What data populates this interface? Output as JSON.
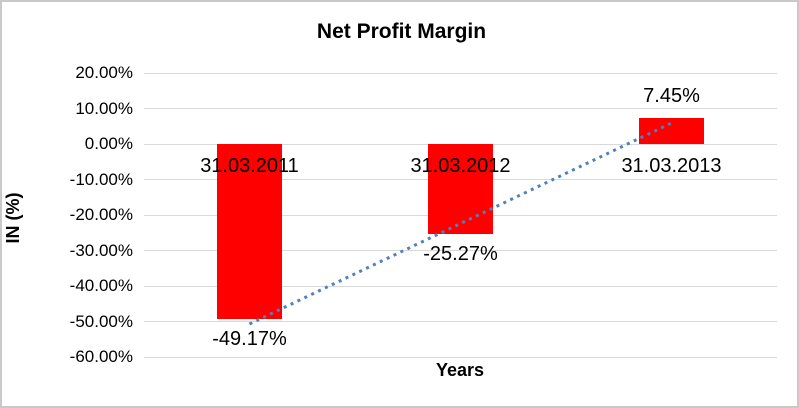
{
  "chart_data": {
    "type": "bar",
    "title": "Net Profit Margin",
    "xlabel": "Years",
    "ylabel": "IN (%)",
    "categories": [
      "31.03.2011",
      "31.03.2012",
      "31.03.2013"
    ],
    "values": [
      -49.17,
      -25.27,
      7.45
    ],
    "data_labels": [
      "-49.17%",
      "-25.27%",
      "7.45%"
    ],
    "y_tick_labels": [
      "20.00%",
      "10.00%",
      "0.00%",
      "-10.00%",
      "-20.00%",
      "-30.00%",
      "-40.00%",
      "-50.00%",
      "-60.00%"
    ],
    "y_tick_values": [
      20,
      10,
      0,
      -10,
      -20,
      -30,
      -40,
      -50,
      -60
    ],
    "ylim": [
      -60,
      20
    ],
    "grid": true,
    "legend": false,
    "bar_color": "#FF0000",
    "gridline_color": "#D9D9D9",
    "trendline": {
      "type": "linear",
      "style": "dotted",
      "color": "#4E81BD",
      "start_value": -50.7,
      "end_value": 5.9
    }
  }
}
